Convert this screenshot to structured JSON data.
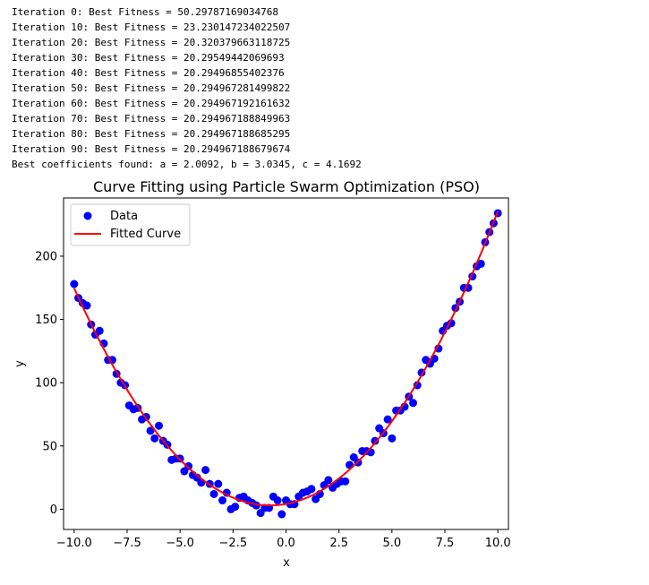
{
  "console": {
    "lines": [
      "Iteration 0: Best Fitness = 50.29787169034768",
      "Iteration 10: Best Fitness = 23.230147234022507",
      "Iteration 20: Best Fitness = 20.320379663118725",
      "Iteration 30: Best Fitness = 20.29549442069693",
      "Iteration 40: Best Fitness = 20.29496855402376",
      "Iteration 50: Best Fitness = 20.294967281499822",
      "Iteration 60: Best Fitness = 20.294967192161632",
      "Iteration 70: Best Fitness = 20.294967188849963",
      "Iteration 80: Best Fitness = 20.294967188685295",
      "Iteration 90: Best Fitness = 20.294967188679674",
      "Best coefficients found: a = 2.0092, b = 3.0345, c = 4.1692"
    ]
  },
  "chart_data": {
    "type": "scatter",
    "title": "Curve Fitting using Particle Swarm Optimization (PSO)",
    "xlabel": "x",
    "ylabel": "y",
    "xlim": [
      -10.5,
      10.5
    ],
    "ylim": [
      -16,
      246
    ],
    "xticks": [
      -10.0,
      -7.5,
      -5.0,
      -2.5,
      0.0,
      2.5,
      5.0,
      7.5,
      10.0
    ],
    "xtick_labels": [
      "−10.0",
      "−7.5",
      "−5.0",
      "−2.5",
      "0.0",
      "2.5",
      "5.0",
      "7.5",
      "10.0"
    ],
    "yticks": [
      0,
      50,
      100,
      150,
      200
    ],
    "ytick_labels": [
      "0",
      "50",
      "100",
      "150",
      "200"
    ],
    "grid": false,
    "legend": {
      "location": "upper left",
      "entries": [
        "Data",
        "Fitted Curve"
      ]
    },
    "series": [
      {
        "name": "Data",
        "kind": "scatter",
        "color": "#0000ff",
        "points": [
          [
            -10.0,
            178
          ],
          [
            -9.8,
            167
          ],
          [
            -9.6,
            163
          ],
          [
            -9.4,
            161
          ],
          [
            -9.2,
            146
          ],
          [
            -9.0,
            138
          ],
          [
            -8.8,
            141
          ],
          [
            -8.6,
            131
          ],
          [
            -8.4,
            118
          ],
          [
            -8.2,
            118
          ],
          [
            -8.0,
            107
          ],
          [
            -7.8,
            100
          ],
          [
            -7.6,
            98
          ],
          [
            -7.4,
            82
          ],
          [
            -7.2,
            79
          ],
          [
            -7.0,
            80
          ],
          [
            -6.8,
            71
          ],
          [
            -6.6,
            73
          ],
          [
            -6.4,
            62
          ],
          [
            -6.2,
            56
          ],
          [
            -6.0,
            66
          ],
          [
            -5.8,
            54
          ],
          [
            -5.6,
            51
          ],
          [
            -5.4,
            39
          ],
          [
            -5.2,
            40
          ],
          [
            -5.0,
            40
          ],
          [
            -4.8,
            30
          ],
          [
            -4.6,
            34
          ],
          [
            -4.4,
            27
          ],
          [
            -4.2,
            25
          ],
          [
            -4.0,
            21
          ],
          [
            -3.8,
            31
          ],
          [
            -3.6,
            20
          ],
          [
            -3.4,
            12
          ],
          [
            -3.2,
            20
          ],
          [
            -3.0,
            7
          ],
          [
            -2.8,
            13
          ],
          [
            -2.6,
            0
          ],
          [
            -2.4,
            2
          ],
          [
            -2.2,
            9
          ],
          [
            -2.0,
            10
          ],
          [
            -1.8,
            7
          ],
          [
            -1.6,
            5
          ],
          [
            -1.4,
            3
          ],
          [
            -1.2,
            -3
          ],
          [
            -1.0,
            1
          ],
          [
            -0.8,
            1
          ],
          [
            -0.6,
            10
          ],
          [
            -0.4,
            7
          ],
          [
            -0.2,
            -4
          ],
          [
            0.0,
            7
          ],
          [
            0.2,
            4
          ],
          [
            0.4,
            4
          ],
          [
            0.6,
            10
          ],
          [
            0.8,
            13
          ],
          [
            1.0,
            14
          ],
          [
            1.2,
            16
          ],
          [
            1.4,
            8
          ],
          [
            1.6,
            12
          ],
          [
            1.8,
            19
          ],
          [
            2.0,
            23
          ],
          [
            2.2,
            17
          ],
          [
            2.4,
            20
          ],
          [
            2.6,
            22
          ],
          [
            2.8,
            22
          ],
          [
            3.0,
            35
          ],
          [
            3.2,
            41
          ],
          [
            3.4,
            37
          ],
          [
            3.6,
            46
          ],
          [
            3.8,
            46
          ],
          [
            4.0,
            45
          ],
          [
            4.2,
            54
          ],
          [
            4.4,
            64
          ],
          [
            4.6,
            60
          ],
          [
            4.8,
            71
          ],
          [
            5.0,
            56
          ],
          [
            5.2,
            78
          ],
          [
            5.4,
            78
          ],
          [
            5.6,
            81
          ],
          [
            5.8,
            89
          ],
          [
            6.0,
            84
          ],
          [
            6.2,
            98
          ],
          [
            6.4,
            108
          ],
          [
            6.6,
            118
          ],
          [
            6.8,
            115
          ],
          [
            7.0,
            119
          ],
          [
            7.2,
            127
          ],
          [
            7.4,
            141
          ],
          [
            7.6,
            145
          ],
          [
            7.8,
            147
          ],
          [
            8.0,
            159
          ],
          [
            8.2,
            164
          ],
          [
            8.4,
            175
          ],
          [
            8.6,
            175
          ],
          [
            8.8,
            184
          ],
          [
            9.0,
            192
          ],
          [
            9.2,
            194
          ],
          [
            9.4,
            211
          ],
          [
            9.6,
            219
          ],
          [
            9.8,
            226
          ],
          [
            10.0,
            234
          ]
        ]
      },
      {
        "name": "Fitted Curve",
        "kind": "line",
        "color": "#ff0000",
        "coefficients": {
          "a": 2.0092,
          "b": 3.0345,
          "c": 4.1692
        },
        "x_range": [
          -10.0,
          10.0
        ]
      }
    ]
  }
}
